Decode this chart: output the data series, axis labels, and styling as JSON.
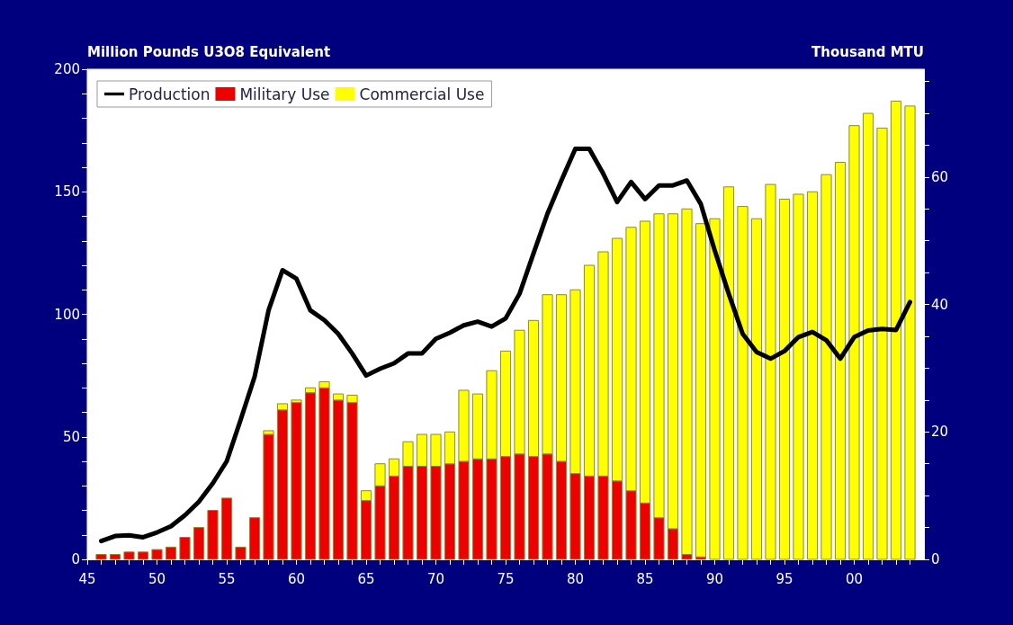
{
  "chart_data": {
    "type": "bar",
    "ylabel": "Million Pounds U3O8 Equivalent",
    "y2label": "Thousand MTU",
    "stacked": true,
    "legend": "top left",
    "grid": false,
    "marker": "none",
    "line_style": "solid",
    "x": [
      1946,
      1947,
      1948,
      1949,
      1950,
      1951,
      1952,
      1953,
      1954,
      1955,
      1956,
      1957,
      1958,
      1959,
      1960,
      1961,
      1962,
      1963,
      1964,
      1965,
      1966,
      1967,
      1968,
      1969,
      1970,
      1971,
      1972,
      1973,
      1974,
      1975,
      1976,
      1977,
      1978,
      1979,
      1980,
      1981,
      1982,
      1983,
      1984,
      1985,
      1986,
      1987,
      1988,
      1989,
      1990,
      1991,
      1992,
      1993,
      1994,
      1995,
      1996,
      1997,
      1998,
      1999,
      2000,
      2001,
      2002,
      2003,
      2004
    ],
    "xlim": [
      1945,
      2005
    ],
    "xticks": [
      {
        "value": 1945,
        "label": "45"
      },
      {
        "value": 1946,
        "label": null
      },
      {
        "value": 1947,
        "label": null
      },
      {
        "value": 1948,
        "label": null
      },
      {
        "value": 1949,
        "label": null
      },
      {
        "value": 1950,
        "label": "50"
      },
      {
        "value": 1951,
        "label": null
      },
      {
        "value": 1952,
        "label": null
      },
      {
        "value": 1953,
        "label": null
      },
      {
        "value": 1954,
        "label": null
      },
      {
        "value": 1955,
        "label": "55"
      },
      {
        "value": 1956,
        "label": null
      },
      {
        "value": 1957,
        "label": null
      },
      {
        "value": 1958,
        "label": null
      },
      {
        "value": 1959,
        "label": null
      },
      {
        "value": 1960,
        "label": "60"
      },
      {
        "value": 1961,
        "label": null
      },
      {
        "value": 1962,
        "label": null
      },
      {
        "value": 1963,
        "label": null
      },
      {
        "value": 1964,
        "label": null
      },
      {
        "value": 1965,
        "label": "65"
      },
      {
        "value": 1966,
        "label": null
      },
      {
        "value": 1967,
        "label": null
      },
      {
        "value": 1968,
        "label": null
      },
      {
        "value": 1969,
        "label": null
      },
      {
        "value": 1970,
        "label": "70"
      },
      {
        "value": 1971,
        "label": null
      },
      {
        "value": 1972,
        "label": null
      },
      {
        "value": 1973,
        "label": null
      },
      {
        "value": 1974,
        "label": null
      },
      {
        "value": 1975,
        "label": "75"
      },
      {
        "value": 1976,
        "label": null
      },
      {
        "value": 1977,
        "label": null
      },
      {
        "value": 1978,
        "label": null
      },
      {
        "value": 1979,
        "label": null
      },
      {
        "value": 1980,
        "label": "80"
      },
      {
        "value": 1981,
        "label": null
      },
      {
        "value": 1982,
        "label": null
      },
      {
        "value": 1983,
        "label": null
      },
      {
        "value": 1984,
        "label": null
      },
      {
        "value": 1985,
        "label": "85"
      },
      {
        "value": 1986,
        "label": null
      },
      {
        "value": 1987,
        "label": null
      },
      {
        "value": 1988,
        "label": null
      },
      {
        "value": 1989,
        "label": null
      },
      {
        "value": 1990,
        "label": "90"
      },
      {
        "value": 1991,
        "label": null
      },
      {
        "value": 1992,
        "label": null
      },
      {
        "value": 1993,
        "label": null
      },
      {
        "value": 1994,
        "label": null
      },
      {
        "value": 1995,
        "label": "95"
      },
      {
        "value": 1996,
        "label": null
      },
      {
        "value": 1997,
        "label": null
      },
      {
        "value": 1998,
        "label": null
      },
      {
        "value": 1999,
        "label": null
      },
      {
        "value": 2000,
        "label": "00"
      },
      {
        "value": 2001,
        "label": null
      },
      {
        "value": 2002,
        "label": null
      },
      {
        "value": 2003,
        "label": null
      },
      {
        "value": 2004,
        "label": null
      }
    ],
    "ylim": [
      0,
      200
    ],
    "yticks": [
      0,
      {
        "value": 10,
        "label": null
      },
      {
        "value": 20,
        "label": null
      },
      {
        "value": 30,
        "label": null
      },
      {
        "value": 40,
        "label": null
      },
      50,
      {
        "value": 60,
        "label": null
      },
      {
        "value": 70,
        "label": null
      },
      {
        "value": 80,
        "label": null
      },
      {
        "value": 90,
        "label": null
      },
      100,
      {
        "value": 110,
        "label": null
      },
      {
        "value": 120,
        "label": null
      },
      {
        "value": 130,
        "label": null
      },
      {
        "value": 140,
        "label": null
      },
      150,
      {
        "value": 160,
        "label": null
      },
      {
        "value": 170,
        "label": null
      },
      {
        "value": 180,
        "label": null
      },
      {
        "value": 190,
        "label": null
      },
      200
    ],
    "y2lim": [
      0,
      76.9
    ],
    "y2ticks": [
      0,
      {
        "value": 5,
        "label": null
      },
      {
        "value": 10,
        "label": null
      },
      {
        "value": 15,
        "label": null
      },
      20,
      {
        "value": 25,
        "label": null
      },
      {
        "value": 30,
        "label": null
      },
      {
        "value": 35,
        "label": null
      },
      40,
      {
        "value": 45,
        "label": null
      },
      {
        "value": 50,
        "label": null
      },
      {
        "value": 55,
        "label": null
      },
      60,
      {
        "value": 65,
        "label": null
      },
      {
        "value": 70,
        "label": null
      },
      {
        "value": 75,
        "label": null
      }
    ],
    "series": [
      {
        "name": "Production",
        "type": "line",
        "color": "#000000",
        "values": [
          7.5,
          9.5,
          9.8,
          9,
          11,
          13.5,
          18,
          23.5,
          31,
          40,
          57,
          74.5,
          101.6,
          118,
          114.5,
          101.6,
          97.6,
          92,
          84,
          75,
          77.8,
          80,
          84,
          84,
          90,
          92.5,
          95.5,
          97,
          95,
          98.3,
          108.4,
          124.8,
          141,
          154.6,
          167.5,
          167.5,
          157.4,
          145.8,
          154,
          147,
          152.6,
          152.6,
          154.6,
          145,
          126,
          108.4,
          92,
          84.6,
          81.9,
          85,
          90.7,
          92.8,
          89.4,
          81.9,
          90.7,
          93.4,
          94,
          93.6,
          105
        ]
      },
      {
        "name": "Military Use",
        "color": "#ee0000",
        "values": [
          2,
          2,
          3,
          3,
          4,
          5,
          9,
          13,
          20,
          25,
          5,
          17,
          51,
          61,
          64,
          68,
          70,
          65,
          64,
          24,
          30,
          34,
          38,
          38,
          38,
          39,
          40,
          41,
          41,
          42,
          43,
          42,
          43,
          40,
          35,
          34,
          34,
          32,
          28,
          23,
          17,
          12.5,
          2,
          1,
          0,
          0,
          0,
          0,
          0,
          0,
          0,
          0,
          0,
          0,
          0,
          0,
          0,
          0,
          0
        ]
      },
      {
        "name": "Commercial Use",
        "color": "#ffff00",
        "values": [
          0,
          0,
          0,
          0,
          0,
          0,
          0,
          0,
          0,
          0,
          0,
          0,
          1.5,
          2.5,
          1,
          2,
          2.5,
          2.5,
          3,
          4,
          9,
          7,
          10,
          13,
          13,
          13,
          29,
          26.5,
          36,
          43,
          50.5,
          55.5,
          65,
          68,
          75,
          86,
          91.5,
          99,
          107.5,
          115,
          124,
          128.5,
          141,
          136,
          139,
          152,
          144,
          139,
          153,
          147,
          149,
          150,
          157,
          162,
          177,
          182,
          176,
          187,
          185
        ]
      }
    ]
  }
}
